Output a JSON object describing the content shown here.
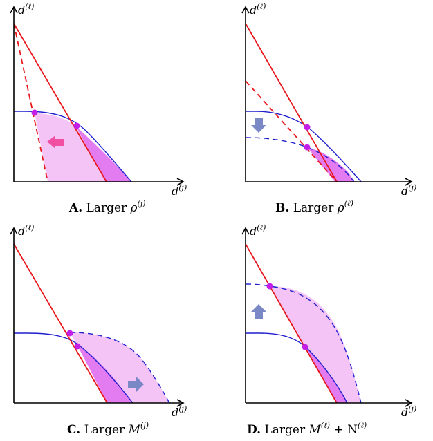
{
  "axis_labels": {
    "y_base": "d",
    "y_sup": "(ℓ)",
    "x_base": "d",
    "x_sup": "(j)"
  },
  "panels": [
    {
      "id": "A",
      "letter": "A.",
      "text": "Larger",
      "symbol": "ρ",
      "sup": "(j)",
      "sym2": "",
      "sup2": ""
    },
    {
      "id": "B",
      "letter": "B.",
      "text": "Larger",
      "symbol": "ρ",
      "sup": "(ℓ)",
      "sym2": "",
      "sup2": ""
    },
    {
      "id": "C",
      "letter": "C.",
      "text": "Larger",
      "symbol": "M",
      "sup": "(j)",
      "sym2": "",
      "sup2": ""
    },
    {
      "id": "D",
      "letter": "D.",
      "text": "Larger",
      "symbol": "M",
      "sup": "(ℓ)",
      "sym2": " + N",
      "sup2": "(ℓ)"
    }
  ],
  "colors": {
    "red_line": "#e8171c",
    "blue_curve": "#1f1fd0",
    "light_fill": "#f4c4f7",
    "dark_fill": "#e27cf0",
    "point": "#c21ee8",
    "arrow_pink": "#f04fa2",
    "arrow_blue": "#7b88c6"
  }
}
